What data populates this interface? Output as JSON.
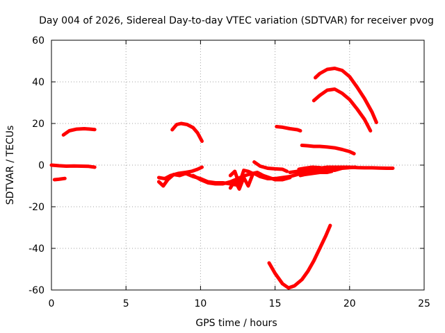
{
  "chart_data": {
    "type": "line",
    "title": "Day 004 of 2026, Sidereal Day-to-day VTEC variation (SDTVAR) for receiver pvog",
    "xlabel": "GPS time / hours",
    "ylabel": "SDTVAR / TECUs",
    "xlim": [
      0,
      25
    ],
    "ylim": [
      -60,
      60
    ],
    "xticks": [
      "0",
      "5",
      "10",
      "15",
      "20",
      "25"
    ],
    "yticks": [
      "-60",
      "-40",
      "-20",
      "0",
      "20",
      "40",
      "60"
    ],
    "grid": true,
    "color": "#ff0000",
    "series": [
      {
        "name": "track-1",
        "x": [
          0.0,
          0.5,
          1.0,
          1.5,
          2.0,
          2.5,
          2.9
        ],
        "y": [
          0.0,
          -0.3,
          -0.5,
          -0.4,
          -0.5,
          -0.6,
          -1.0
        ]
      },
      {
        "name": "track-2",
        "x": [
          0.2,
          0.5,
          0.9
        ],
        "y": [
          -7.0,
          -6.8,
          -6.4
        ]
      },
      {
        "name": "track-3",
        "x": [
          0.8,
          1.2,
          1.7,
          2.2,
          2.6,
          2.9
        ],
        "y": [
          14.5,
          16.5,
          17.3,
          17.5,
          17.3,
          17.1
        ]
      },
      {
        "name": "track-4",
        "x": [
          8.1,
          8.4,
          8.7,
          9.1,
          9.5,
          9.8,
          10.1
        ],
        "y": [
          17.0,
          19.5,
          20.0,
          19.5,
          18.0,
          15.5,
          11.5
        ]
      },
      {
        "name": "track-5",
        "x": [
          7.2,
          7.6,
          8.0,
          8.5,
          9.0,
          9.4,
          9.8,
          10.1
        ],
        "y": [
          -6.0,
          -6.5,
          -5.0,
          -4.0,
          -3.5,
          -3.0,
          -2.0,
          -1.0
        ]
      },
      {
        "name": "track-6",
        "x": [
          7.2,
          7.5,
          7.8,
          8.2,
          8.6,
          9.0,
          9.5,
          10.0,
          10.5,
          11.0,
          11.5,
          12.0,
          12.4
        ],
        "y": [
          -8.0,
          -10.0,
          -7.0,
          -4.5,
          -5.0,
          -4.0,
          -5.5,
          -6.5,
          -8.0,
          -8.5,
          -8.5,
          -9.0,
          -9.5
        ]
      },
      {
        "name": "track-7",
        "x": [
          9.5,
          10.0,
          10.5,
          11.0,
          11.5,
          12.0,
          12.5,
          12.8,
          13.2,
          13.6,
          14.0,
          14.5,
          15.0,
          15.5,
          16.0,
          16.5,
          17.0,
          17.5,
          18.0,
          18.5,
          19.0,
          19.5,
          20.0,
          20.5,
          21.0,
          21.5,
          22.0,
          22.5,
          22.9
        ],
        "y": [
          -5.0,
          -7.0,
          -8.5,
          -9.0,
          -9.0,
          -8.0,
          -6.5,
          -5.5,
          -4.5,
          -4.0,
          -5.5,
          -6.5,
          -6.5,
          -6.0,
          -5.5,
          -4.5,
          -3.0,
          -2.0,
          -1.5,
          -1.0,
          -1.0,
          -1.0,
          -1.0,
          -1.2,
          -1.3,
          -1.3,
          -1.4,
          -1.5,
          -1.5
        ]
      },
      {
        "name": "track-8",
        "x": [
          12.0,
          12.3,
          12.6,
          12.9,
          13.2,
          13.5,
          13.8,
          14.2,
          14.6,
          15.0,
          15.5,
          16.0
        ],
        "y": [
          -5.0,
          -3.0,
          -9.0,
          -2.5,
          -3.0,
          -4.0,
          -3.5,
          -5.0,
          -6.0,
          -7.0,
          -7.0,
          -6.0
        ]
      },
      {
        "name": "track-9",
        "x": [
          12.0,
          12.3,
          12.6,
          12.9,
          13.2,
          13.5
        ],
        "y": [
          -11.0,
          -7.5,
          -11.5,
          -6.0,
          -10.0,
          -4.5
        ]
      },
      {
        "name": "track-10",
        "x": [
          13.6,
          14.0,
          14.5,
          15.0,
          15.5,
          15.8
        ],
        "y": [
          1.5,
          -0.5,
          -1.5,
          -1.8,
          -2.0,
          -3.0
        ]
      },
      {
        "name": "track-11",
        "x": [
          16.0,
          16.5,
          17.0,
          17.5,
          18.0,
          18.4,
          18.7
        ],
        "y": [
          -3.5,
          -3.0,
          -2.5,
          -3.0,
          -3.0,
          -2.5,
          -2.5
        ]
      },
      {
        "name": "track-12",
        "x": [
          15.1,
          15.5,
          16.0,
          16.5,
          16.7
        ],
        "y": [
          18.5,
          18.2,
          17.5,
          17.0,
          16.5
        ]
      },
      {
        "name": "track-13",
        "x": [
          16.6,
          17.0,
          17.5,
          18.0,
          18.5,
          19.0,
          19.5,
          20.0,
          20.4
        ],
        "y": [
          -2.0,
          -1.5,
          -1.0,
          -1.2,
          -2.0,
          -2.5,
          -1.5,
          -1.2,
          -1.0
        ]
      },
      {
        "name": "track-14",
        "x": [
          16.7,
          17.0,
          17.5,
          18.0,
          18.5,
          18.8
        ],
        "y": [
          -5.0,
          -4.5,
          -4.0,
          -3.5,
          -3.5,
          -3.0
        ]
      },
      {
        "name": "track-15",
        "x": [
          14.6,
          15.0,
          15.5,
          15.9,
          16.3,
          16.8,
          17.2,
          17.6,
          18.0,
          18.4,
          18.7
        ],
        "y": [
          -47.0,
          -52.0,
          -57.0,
          -59.0,
          -58.0,
          -55.0,
          -51.0,
          -46.0,
          -40.0,
          -34.0,
          -29.0
        ]
      },
      {
        "name": "track-16",
        "x": [
          17.6,
          18.0,
          18.5,
          19.0,
          19.5,
          20.0,
          20.5,
          21.0,
          21.4
        ],
        "y": [
          31.0,
          33.5,
          36.0,
          36.5,
          34.5,
          31.5,
          27.0,
          22.0,
          16.5
        ]
      },
      {
        "name": "track-17",
        "x": [
          17.7,
          18.0,
          18.5,
          19.0,
          19.5,
          20.0,
          20.5,
          21.0,
          21.5,
          21.8
        ],
        "y": [
          42.0,
          44.0,
          46.0,
          46.5,
          45.5,
          42.5,
          37.5,
          32.0,
          25.5,
          20.5
        ]
      },
      {
        "name": "track-18",
        "x": [
          16.8,
          17.2,
          17.6,
          18.0,
          18.5,
          19.0,
          19.5,
          20.0,
          20.3
        ],
        "y": [
          9.5,
          9.3,
          9.0,
          9.0,
          8.7,
          8.3,
          7.5,
          6.5,
          5.5
        ]
      }
    ]
  }
}
